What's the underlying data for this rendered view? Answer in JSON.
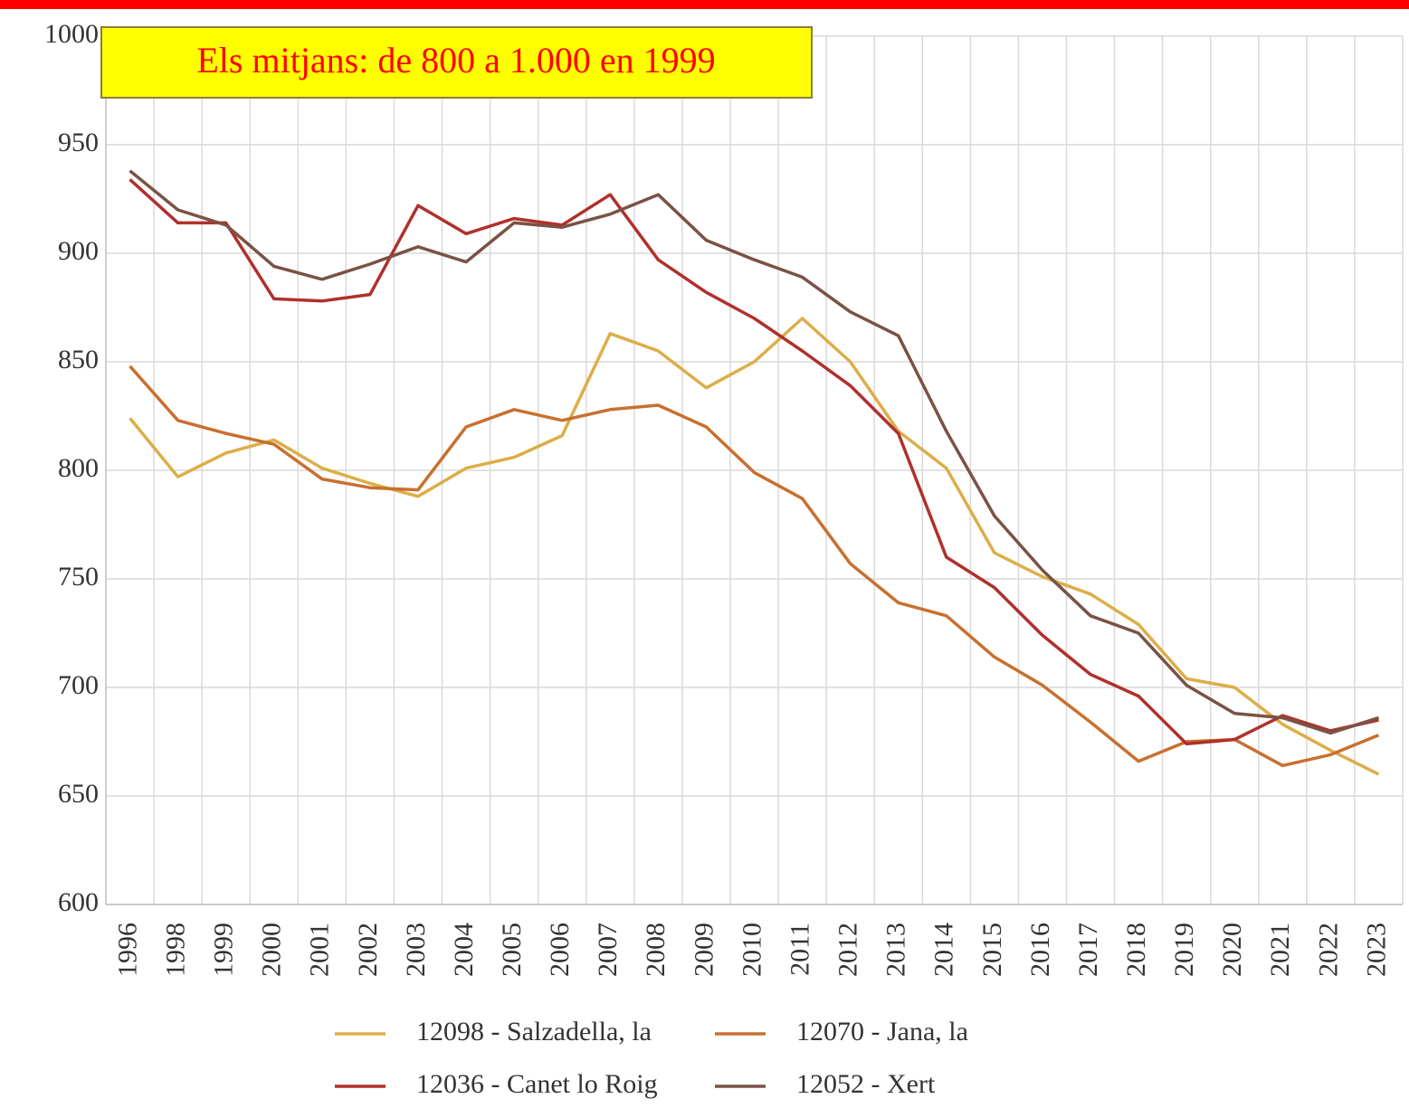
{
  "chart_data": {
    "type": "line",
    "title": "Els mitjans: de 800 a 1.000 en 1999",
    "categories": [
      "1996",
      "1998",
      "1999",
      "2000",
      "2001",
      "2002",
      "2003",
      "2004",
      "2005",
      "2006",
      "2007",
      "2008",
      "2009",
      "2010",
      "2011",
      "2012",
      "2013",
      "2014",
      "2015",
      "2016",
      "2017",
      "2018",
      "2019",
      "2020",
      "2021",
      "2022",
      "2023"
    ],
    "series": [
      {
        "name": "12098 - Salzadella, la",
        "color": "#dcae48",
        "values": [
          824,
          797,
          808,
          814,
          801,
          794,
          788,
          801,
          806,
          816,
          863,
          855,
          838,
          850,
          870,
          850,
          818,
          801,
          762,
          751,
          743,
          729,
          704,
          700,
          683,
          671,
          660
        ]
      },
      {
        "name": "12070 - Jana, la",
        "color": "#c8702e",
        "values": [
          848,
          823,
          817,
          812,
          796,
          792,
          791,
          820,
          828,
          823,
          828,
          830,
          820,
          799,
          787,
          757,
          739,
          733,
          714,
          701,
          684,
          666,
          675,
          676,
          664,
          669,
          678
        ]
      },
      {
        "name": "12036 - Canet lo Roig",
        "color": "#b0302c",
        "values": [
          934,
          914,
          914,
          879,
          878,
          881,
          922,
          909,
          916,
          913,
          927,
          897,
          882,
          870,
          855,
          839,
          817,
          760,
          746,
          724,
          706,
          696,
          674,
          676,
          687,
          680,
          685
        ]
      },
      {
        "name": "12052 - Xert",
        "color": "#7a5245",
        "values": [
          938,
          920,
          913,
          894,
          888,
          895,
          903,
          896,
          914,
          912,
          918,
          927,
          906,
          897,
          889,
          873,
          862,
          818,
          779,
          754,
          733,
          725,
          701,
          688,
          686,
          679,
          686
        ]
      }
    ],
    "ylim": [
      600,
      1000
    ],
    "yticks": [
      600,
      650,
      700,
      750,
      800,
      850,
      900,
      950,
      1000
    ],
    "grid": true,
    "legend": "bottom"
  }
}
